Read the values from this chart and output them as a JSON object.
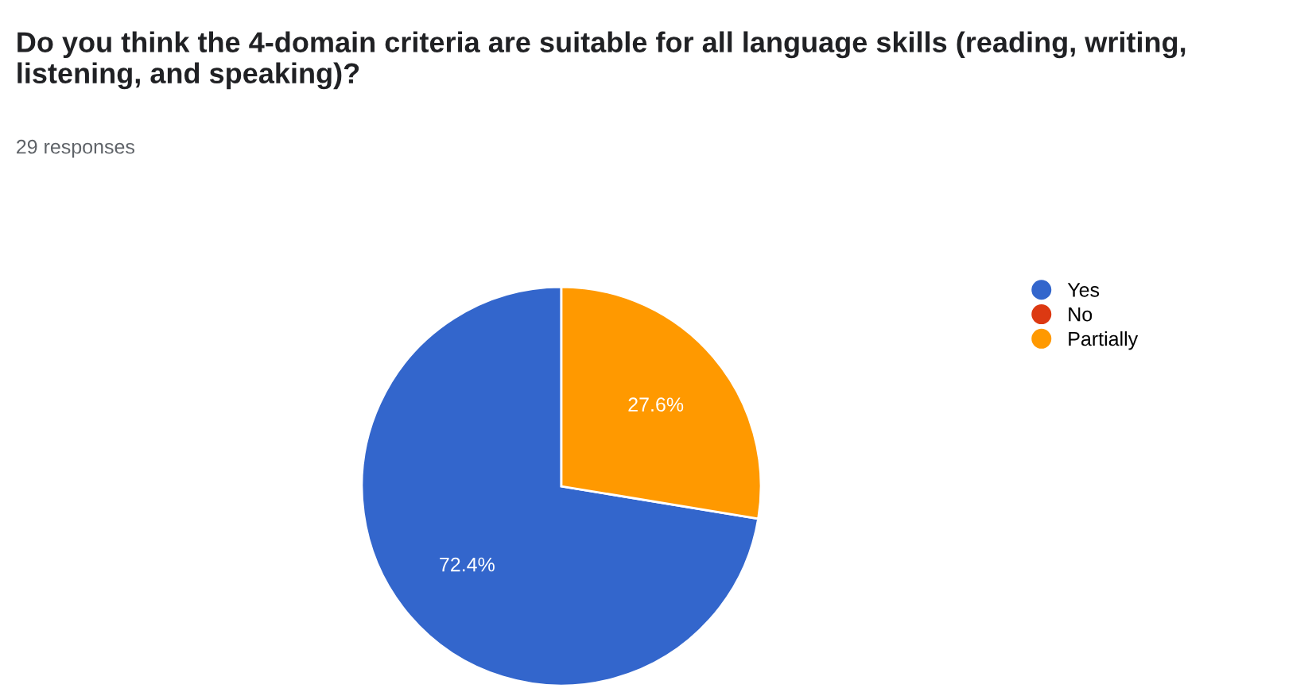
{
  "chart_data": {
    "type": "pie",
    "title": "Do you think the 4-domain criteria are suitable for all language skills (reading, writing, listening, and speaking)?",
    "subtitle": "29 responses",
    "categories": [
      "Yes",
      "No",
      "Partially"
    ],
    "values": [
      72.4,
      0,
      27.6
    ],
    "colors": [
      "#3366cc",
      "#dc3912",
      "#ff9900"
    ],
    "value_labels": [
      "72.4%",
      null,
      "27.6%"
    ],
    "legend": "top right"
  }
}
